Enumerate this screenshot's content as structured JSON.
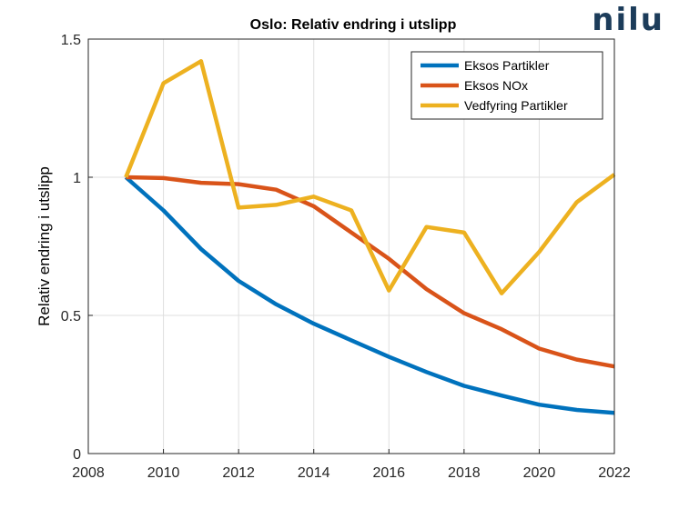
{
  "logo": {
    "text": "nilu",
    "color": "#1c3c5a"
  },
  "chart_data": {
    "type": "line",
    "title": "Oslo: Relativ endring i utslipp",
    "xlabel": "",
    "ylabel": "Relativ endring i utslipp",
    "xlim": [
      2008,
      2022
    ],
    "ylim": [
      0,
      1.5
    ],
    "xticks": [
      "2008",
      "2010",
      "2012",
      "2014",
      "2016",
      "2018",
      "2020",
      "2022"
    ],
    "yticks": [
      "0",
      "0.5",
      "1",
      "1.5"
    ],
    "grid": true,
    "legend_position": "top-right",
    "x": [
      2009,
      2010,
      2011,
      2012,
      2013,
      2014,
      2015,
      2016,
      2017,
      2018,
      2019,
      2020,
      2021,
      2022
    ],
    "series": [
      {
        "name": "Eksos Partikler",
        "color": "#0072bd",
        "values": [
          1.0,
          0.88,
          0.74,
          0.625,
          0.54,
          0.47,
          0.41,
          0.35,
          0.295,
          0.245,
          0.21,
          0.177,
          0.158,
          0.147
        ]
      },
      {
        "name": "Eksos NOx",
        "color": "#d95319",
        "values": [
          1.0,
          0.997,
          0.98,
          0.975,
          0.955,
          0.895,
          0.8,
          0.705,
          0.595,
          0.508,
          0.45,
          0.38,
          0.34,
          0.315
        ]
      },
      {
        "name": "Vedfyring Partikler",
        "color": "#edb120",
        "values": [
          1.0,
          1.34,
          1.42,
          0.89,
          0.9,
          0.93,
          0.88,
          0.59,
          0.82,
          0.8,
          0.58,
          0.73,
          0.91,
          1.01
        ]
      }
    ]
  }
}
